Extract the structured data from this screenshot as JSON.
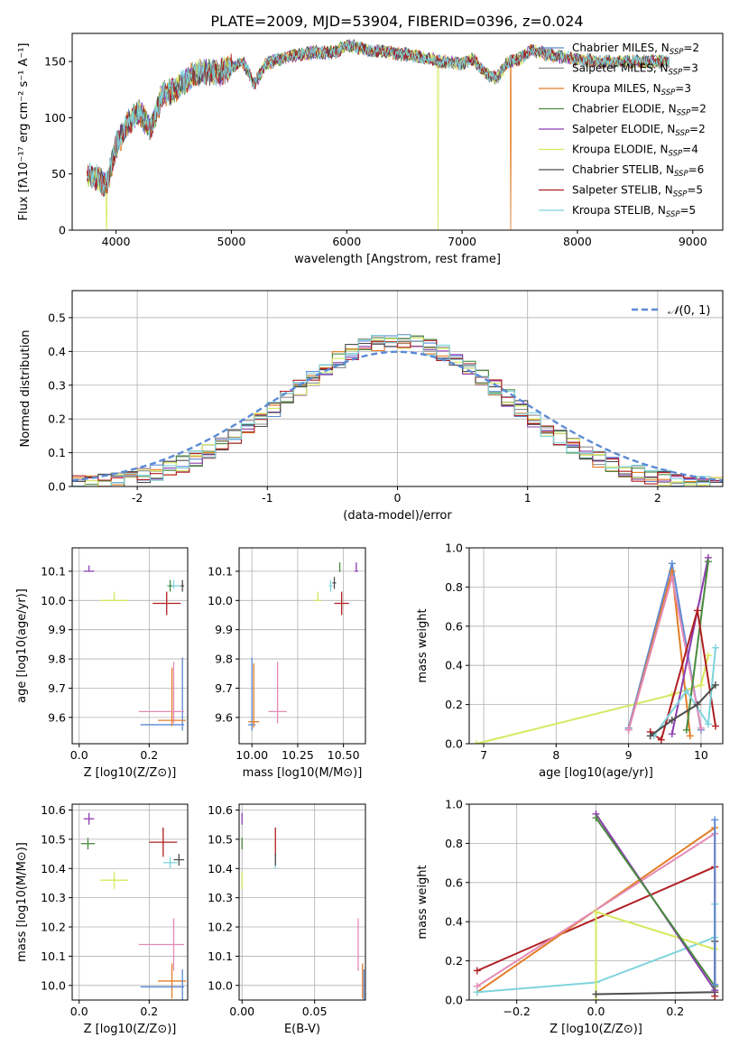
{
  "figure_title": "PLATE=2009, MJD=53904, FIBERID=0396, z=0.024",
  "colors": {
    "Chabrier MILES": "#5b8ad5",
    "Salpeter MILES": "#8c8c8c",
    "Kroupa MILES": "#e37d27",
    "Chabrier ELODIE": "#4a8a3f",
    "Salpeter ELODIE": "#8c3db0",
    "Kroupa ELODIE": "#d6e85e",
    "Chabrier STELIB": "#4d4d4d",
    "Salpeter STELIB": "#b01e22",
    "Kroupa STELIB": "#7ed4db",
    "Extra": "#e48ab5"
  },
  "chart_data": [
    {
      "type": "line",
      "title": "PLATE=2009, MJD=53904, FIBERID=0396, z=0.024",
      "xlabel": "wavelength [Angstrom, rest frame]",
      "ylabel_html": "Flux [fλ10⁻¹⁷ erg cm⁻² s⁻¹ A⁻¹]",
      "xlim": [
        3620,
        9260
      ],
      "ylim": [
        0,
        175
      ],
      "xticks": [
        4000,
        5000,
        6000,
        7000,
        8000,
        9000
      ],
      "yticks": [
        0,
        50,
        100,
        150
      ],
      "legend_position": "top-right",
      "legend": [
        {
          "name": "Chabrier MILES",
          "sub": "SSP",
          "value": "2"
        },
        {
          "name": "Salpeter MILES",
          "sub": "SSP",
          "value": "3"
        },
        {
          "name": "Kroupa MILES",
          "sub": "SSP",
          "value": "3"
        },
        {
          "name": "Chabrier ELODIE",
          "sub": "SSP",
          "value": "2"
        },
        {
          "name": "Salpeter ELODIE",
          "sub": "SSP",
          "value": "2"
        },
        {
          "name": "Kroupa ELODIE",
          "sub": "SSP",
          "value": "4"
        },
        {
          "name": "Chabrier STELIB",
          "sub": "SSP",
          "value": "6"
        },
        {
          "name": "Salpeter STELIB",
          "sub": "SSP",
          "value": "5"
        },
        {
          "name": "Kroupa STELIB",
          "sub": "SSP",
          "value": "5"
        }
      ],
      "spectrum_anchors": {
        "x": [
          3750,
          3850,
          3920,
          4000,
          4100,
          4200,
          4300,
          4400,
          4500,
          4700,
          4900,
          5000,
          5100,
          5200,
          5300,
          5500,
          5700,
          5900,
          6000,
          6200,
          6400,
          6600,
          6800,
          7000,
          7100,
          7200,
          7300,
          7400,
          7500,
          7600,
          7800,
          8000,
          8200,
          8500,
          8800
        ],
        "y": [
          50,
          45,
          40,
          75,
          95,
          105,
          90,
          120,
          125,
          140,
          140,
          145,
          150,
          130,
          148,
          155,
          158,
          158,
          165,
          160,
          158,
          155,
          150,
          148,
          152,
          140,
          135,
          150,
          152,
          160,
          155,
          152,
          150,
          150,
          150
        ]
      },
      "dropouts": [
        {
          "series": "Kroupa ELODIE",
          "x": 3920
        },
        {
          "series": "Kroupa ELODIE",
          "x": 6790
        },
        {
          "series": "Kroupa MILES",
          "x": 7420
        }
      ]
    },
    {
      "type": "histogram",
      "xlabel": "(data-model)/error",
      "ylabel": "Normed distribution",
      "xlim": [
        -2.5,
        2.5
      ],
      "ylim": [
        0,
        0.58
      ],
      "xticks": [
        -2,
        -1,
        0,
        1,
        2
      ],
      "yticks": [
        0.0,
        0.1,
        0.2,
        0.3,
        0.4,
        0.5
      ],
      "bin_width": 0.1,
      "legend_position": "top-right",
      "reference_curve": {
        "name": "N(0,1)",
        "mean": 0,
        "sigma": 1,
        "color": "#5b8ad5"
      }
    },
    {
      "type": "scatter",
      "xlabel": "Z [log10(Z/Z⊙)]",
      "ylabel": "age [log10(age/yr)]",
      "xlim": [
        -0.02,
        0.31
      ],
      "ylim": [
        9.51,
        10.18
      ],
      "xticks": [
        0.0,
        0.2
      ],
      "yticks": [
        9.6,
        9.7,
        9.8,
        9.9,
        10.0,
        10.1
      ],
      "points": [
        {
          "series": "Chabrier MILES",
          "x": 0.295,
          "y": 9.575,
          "xerr": [
            0.12,
            0.005
          ],
          "yerr": [
            0.02,
            0.23
          ]
        },
        {
          "series": "Kroupa MILES",
          "x": 0.265,
          "y": 9.59,
          "xerr": [
            0.04,
            0.04
          ],
          "yerr": [
            0.02,
            0.18
          ]
        },
        {
          "series": "Extra",
          "x": 0.27,
          "y": 9.62,
          "xerr": [
            0.1,
            0.03
          ],
          "yerr": [
            0.04,
            0.17
          ]
        },
        {
          "series": "Salpeter ELODIE",
          "x": 0.028,
          "y": 10.1,
          "xerr": [
            0.015,
            0.015
          ],
          "yerr": [
            0.0,
            0.02
          ]
        },
        {
          "series": "Kroupa ELODIE",
          "x": 0.1,
          "y": 10.0,
          "xerr": [
            0.04,
            0.04
          ],
          "yerr": [
            0.0,
            0.03
          ]
        },
        {
          "series": "Salpeter STELIB",
          "x": 0.25,
          "y": 9.99,
          "xerr": [
            0.04,
            0.04
          ],
          "yerr": [
            0.04,
            0.04
          ]
        },
        {
          "series": "Kroupa STELIB",
          "x": 0.27,
          "y": 10.05,
          "xerr": [
            0.02,
            0.02
          ],
          "yerr": [
            0.01,
            0.02
          ]
        },
        {
          "series": "Chabrier STELIB",
          "x": 0.295,
          "y": 10.05,
          "xerr": [
            0.005,
            0.005
          ],
          "yerr": [
            0.02,
            0.02
          ]
        },
        {
          "series": "Chabrier ELODIE",
          "x": 0.26,
          "y": 10.05,
          "xerr": [
            0.005,
            0.005
          ],
          "yerr": [
            0.02,
            0.02
          ]
        }
      ]
    },
    {
      "type": "scatter",
      "xlabel": "mass [log10(M/M⊙)]",
      "xlim": [
        9.93,
        10.62
      ],
      "ylim": [
        9.51,
        10.18
      ],
      "xticks": [
        10.0,
        10.25,
        10.5
      ],
      "yticks": [
        9.6,
        9.7,
        9.8,
        9.9,
        10.0,
        10.1
      ],
      "points": [
        {
          "series": "Chabrier MILES",
          "x": 10.0,
          "y": 9.575,
          "xerr": [
            0.02,
            0.02
          ],
          "yerr": [
            0.02,
            0.23
          ]
        },
        {
          "series": "Kroupa MILES",
          "x": 10.01,
          "y": 9.585,
          "xerr": [
            0.03,
            0.03
          ],
          "yerr": [
            0.02,
            0.2
          ]
        },
        {
          "series": "Extra",
          "x": 10.14,
          "y": 9.62,
          "xerr": [
            0.05,
            0.05
          ],
          "yerr": [
            0.04,
            0.17
          ]
        },
        {
          "series": "Kroupa ELODIE",
          "x": 10.36,
          "y": 10.0,
          "xerr": [
            0.02,
            0.02
          ],
          "yerr": [
            0.0,
            0.03
          ]
        },
        {
          "series": "Chabrier ELODIE",
          "x": 10.48,
          "y": 10.1,
          "xerr": [
            0.005,
            0.005
          ],
          "yerr": [
            0.0,
            0.03
          ]
        },
        {
          "series": "Salpeter ELODIE",
          "x": 10.57,
          "y": 10.1,
          "xerr": [
            0.01,
            0.01
          ],
          "yerr": [
            0.0,
            0.03
          ]
        },
        {
          "series": "Salpeter STELIB",
          "x": 10.49,
          "y": 9.99,
          "xerr": [
            0.04,
            0.04
          ],
          "yerr": [
            0.04,
            0.04
          ]
        },
        {
          "series": "Kroupa STELIB",
          "x": 10.43,
          "y": 10.05,
          "xerr": [
            0.01,
            0.01
          ],
          "yerr": [
            0.02,
            0.02
          ]
        },
        {
          "series": "Chabrier STELIB",
          "x": 10.45,
          "y": 10.06,
          "xerr": [
            0.01,
            0.01
          ],
          "yerr": [
            0.02,
            0.02
          ]
        }
      ]
    },
    {
      "type": "line",
      "xlabel": "age [log10(age/yr)]",
      "ylabel": "mass weight",
      "xlim": [
        6.8,
        10.3
      ],
      "ylim": [
        0,
        1.0
      ],
      "xticks": [
        7,
        8,
        9,
        10
      ],
      "yticks": [
        0.0,
        0.2,
        0.4,
        0.6,
        0.8,
        1.0
      ],
      "series": [
        {
          "name": "Kroupa ELODIE",
          "x": [
            6.9,
            9.6,
            10.0,
            10.1
          ],
          "y": [
            0.0,
            0.25,
            0.3,
            0.45
          ]
        },
        {
          "name": "Chabrier MILES",
          "x": [
            9.0,
            9.6,
            10.0
          ],
          "y": [
            0.08,
            0.92,
            0.07
          ]
        },
        {
          "name": "Kroupa MILES",
          "x": [
            9.0,
            9.6,
            9.85
          ],
          "y": [
            0.07,
            0.88,
            0.04
          ]
        },
        {
          "name": "Extra",
          "x": [
            9.0,
            9.6,
            10.0
          ],
          "y": [
            0.07,
            0.85,
            0.08
          ]
        },
        {
          "name": "Salpeter ELODIE",
          "x": [
            9.6,
            10.1
          ],
          "y": [
            0.05,
            0.95
          ]
        },
        {
          "name": "Chabrier ELODIE",
          "x": [
            9.8,
            10.1
          ],
          "y": [
            0.07,
            0.93
          ]
        },
        {
          "name": "Salpeter STELIB",
          "x": [
            9.3,
            9.45,
            9.95,
            10.2
          ],
          "y": [
            0.06,
            0.02,
            0.68,
            0.09
          ]
        },
        {
          "name": "Kroupa STELIB",
          "x": [
            9.35,
            9.8,
            10.1,
            10.2
          ],
          "y": [
            0.04,
            0.27,
            0.1,
            0.49
          ]
        },
        {
          "name": "Chabrier STELIB",
          "x": [
            9.3,
            9.6,
            9.95,
            10.2
          ],
          "y": [
            0.04,
            0.12,
            0.2,
            0.3
          ]
        }
      ]
    },
    {
      "type": "scatter",
      "xlabel": "Z [log10(Z/Z⊙)]",
      "ylabel": "mass [log10(M/M⊙)]",
      "xlim": [
        -0.02,
        0.31
      ],
      "ylim": [
        9.95,
        10.62
      ],
      "xticks": [
        0.0,
        0.2
      ],
      "yticks": [
        10.0,
        10.1,
        10.2,
        10.3,
        10.4,
        10.5,
        10.6
      ],
      "points": [
        {
          "series": "Salpeter ELODIE",
          "x": 0.028,
          "y": 10.57,
          "xerr": [
            0.015,
            0.015
          ],
          "yerr": [
            0.02,
            0.02
          ]
        },
        {
          "series": "Chabrier ELODIE",
          "x": 0.025,
          "y": 10.485,
          "xerr": [
            0.02,
            0.02
          ],
          "yerr": [
            0.02,
            0.02
          ]
        },
        {
          "series": "Kroupa ELODIE",
          "x": 0.1,
          "y": 10.36,
          "xerr": [
            0.04,
            0.04
          ],
          "yerr": [
            0.03,
            0.03
          ]
        },
        {
          "series": "Salpeter STELIB",
          "x": 0.24,
          "y": 10.49,
          "xerr": [
            0.04,
            0.04
          ],
          "yerr": [
            0.05,
            0.05
          ]
        },
        {
          "series": "Kroupa STELIB",
          "x": 0.26,
          "y": 10.42,
          "xerr": [
            0.02,
            0.02
          ],
          "yerr": [
            0.02,
            0.02
          ]
        },
        {
          "series": "Chabrier STELIB",
          "x": 0.285,
          "y": 10.43,
          "xerr": [
            0.015,
            0.015
          ],
          "yerr": [
            0.02,
            0.02
          ]
        },
        {
          "series": "Extra",
          "x": 0.27,
          "y": 10.14,
          "xerr": [
            0.1,
            0.03
          ],
          "yerr": [
            0.09,
            0.09
          ]
        },
        {
          "series": "Kroupa MILES",
          "x": 0.265,
          "y": 10.015,
          "xerr": [
            0.04,
            0.04
          ],
          "yerr": [
            0.06,
            0.06
          ]
        },
        {
          "series": "Chabrier MILES",
          "x": 0.295,
          "y": 9.995,
          "xerr": [
            0.12,
            0.005
          ],
          "yerr": [
            0.06,
            0.06
          ]
        }
      ]
    },
    {
      "type": "scatter",
      "xlabel": "E(B-V)",
      "xlim": [
        -0.002,
        0.085
      ],
      "ylim": [
        9.95,
        10.62
      ],
      "xticks": [
        0.0,
        0.05
      ],
      "yticks": [
        10.0,
        10.1,
        10.2,
        10.3,
        10.4,
        10.5,
        10.6
      ],
      "points": [
        {
          "series": "Salpeter ELODIE",
          "x": 0.0,
          "y": 10.57,
          "xerr": [
            0,
            0
          ],
          "yerr": [
            0.02,
            0.02
          ]
        },
        {
          "series": "Chabrier ELODIE",
          "x": 0.0,
          "y": 10.485,
          "xerr": [
            0,
            0
          ],
          "yerr": [
            0.02,
            0.02
          ]
        },
        {
          "series": "Kroupa ELODIE",
          "x": 0.0,
          "y": 10.36,
          "xerr": [
            0,
            0
          ],
          "yerr": [
            0.03,
            0.03
          ]
        },
        {
          "series": "Salpeter STELIB",
          "x": 0.023,
          "y": 10.49,
          "xerr": [
            0,
            0
          ],
          "yerr": [
            0.05,
            0.05
          ]
        },
        {
          "series": "Kroupa STELIB",
          "x": 0.023,
          "y": 10.42,
          "xerr": [
            0,
            0
          ],
          "yerr": [
            0.02,
            0.02
          ]
        },
        {
          "series": "Chabrier STELIB",
          "x": 0.023,
          "y": 10.43,
          "xerr": [
            0,
            0
          ],
          "yerr": [
            0.02,
            0.02
          ]
        },
        {
          "series": "Extra",
          "x": 0.08,
          "y": 10.14,
          "xerr": [
            0,
            0
          ],
          "yerr": [
            0.09,
            0.09
          ]
        },
        {
          "series": "Kroupa MILES",
          "x": 0.083,
          "y": 10.015,
          "xerr": [
            0,
            0
          ],
          "yerr": [
            0.06,
            0.06
          ]
        },
        {
          "series": "Chabrier MILES",
          "x": 0.084,
          "y": 9.995,
          "xerr": [
            0,
            0
          ],
          "yerr": [
            0.06,
            0.06
          ]
        }
      ]
    },
    {
      "type": "line",
      "xlabel": "Z [log10(Z/Z⊙)]",
      "ylabel": "mass weight",
      "xlim": [
        -0.32,
        0.32
      ],
      "ylim": [
        0,
        1.0
      ],
      "xticks": [
        -0.2,
        0.0,
        0.2
      ],
      "yticks": [
        0.0,
        0.2,
        0.4,
        0.6,
        0.8,
        1.0
      ],
      "series": [
        {
          "name": "Salpeter STELIB",
          "x": [
            -0.3,
            0.3,
            0.3
          ],
          "y": [
            0.15,
            0.68,
            0.02
          ]
        },
        {
          "name": "Kroupa MILES",
          "x": [
            -0.3,
            0.3,
            0.3
          ],
          "y": [
            0.04,
            0.88,
            0.04
          ]
        },
        {
          "name": "Extra",
          "x": [
            -0.3,
            0.3,
            0.3
          ],
          "y": [
            0.07,
            0.85,
            0.07
          ]
        },
        {
          "name": "Kroupa STELIB",
          "x": [
            -0.3,
            0.0,
            0.3,
            0.3
          ],
          "y": [
            0.04,
            0.09,
            0.32,
            0.49
          ]
        },
        {
          "name": "Kroupa ELODIE",
          "x": [
            0.0,
            0.0,
            0.3,
            0.3
          ],
          "y": [
            0.0,
            0.45,
            0.26,
            0.3
          ]
        },
        {
          "name": "Chabrier STELIB",
          "x": [
            0.0,
            0.3,
            0.3
          ],
          "y": [
            0.03,
            0.04,
            0.3
          ]
        },
        {
          "name": "Salpeter ELODIE",
          "x": [
            0.0,
            0.3
          ],
          "y": [
            0.95,
            0.05
          ]
        },
        {
          "name": "Chabrier ELODIE",
          "x": [
            0.0,
            0.3
          ],
          "y": [
            0.93,
            0.07
          ]
        },
        {
          "name": "Chabrier MILES",
          "x": [
            0.3,
            0.3
          ],
          "y": [
            0.92,
            0.08
          ]
        }
      ]
    }
  ]
}
